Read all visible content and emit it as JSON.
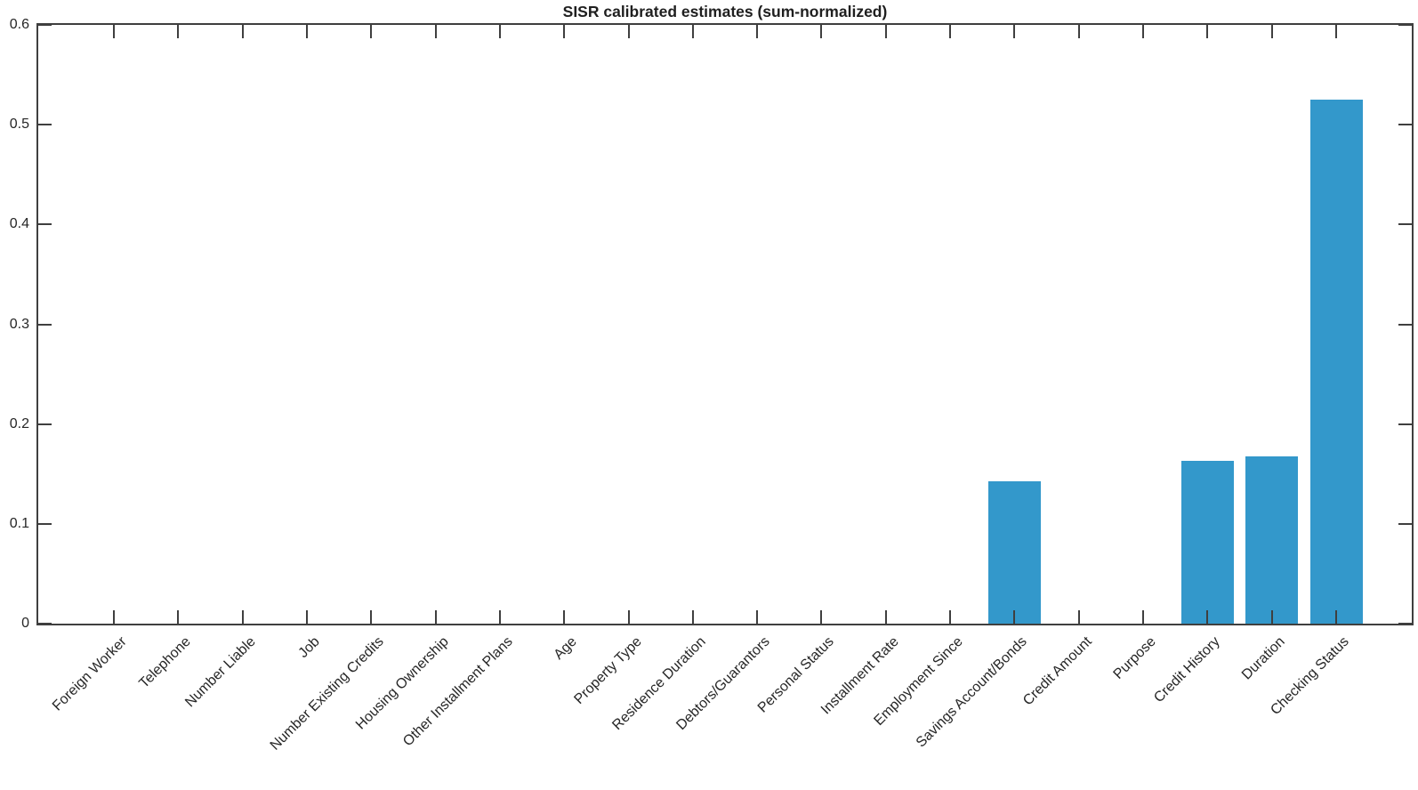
{
  "chart_data": {
    "type": "bar",
    "title": "SISR calibrated estimates (sum-normalized)",
    "categories": [
      "Foreign Worker",
      "Telephone",
      "Number Liable",
      "Job",
      "Number Existing Credits",
      "Housing Ownership",
      "Other Installment Plans",
      "Age",
      "Property Type",
      "Residence Duration",
      "Debtors/Guarantors",
      "Personal Status",
      "Installment Rate",
      "Employment Since",
      "Savings Account/Bonds",
      "Credit Amount",
      "Purpose",
      "Credit History",
      "Duration",
      "Checking Status"
    ],
    "values": [
      0,
      0,
      0,
      0,
      0,
      0,
      0,
      0,
      0,
      0,
      0,
      0,
      0,
      0,
      0.143,
      0,
      0,
      0.163,
      0.168,
      0.525
    ],
    "xlabel": "",
    "ylabel": "",
    "ylim": [
      0,
      0.6
    ],
    "yticks": [
      0,
      0.1,
      0.2,
      0.3,
      0.4,
      0.5,
      0.6
    ],
    "ytick_labels": [
      "0",
      "0.1",
      "0.2",
      "0.3",
      "0.4",
      "0.5",
      "0.6"
    ],
    "xtick_rotation_deg": 45,
    "grid": false,
    "legend": null,
    "bar_color": "#3398cb",
    "axis_color": "#3f3f3f",
    "label_color": "#262626",
    "background": "#ffffff"
  }
}
